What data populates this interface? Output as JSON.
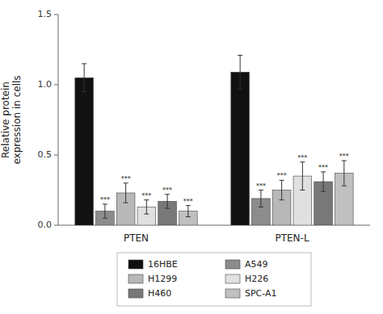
{
  "chart_data": {
    "type": "bar",
    "ylabel": "Relative protein\nexpression in cells",
    "categories": [
      "PTEN",
      "PTEN-L"
    ],
    "series": [
      {
        "name": "16HBE",
        "color": "#111111",
        "values": [
          1.05,
          1.09
        ],
        "errors": [
          0.1,
          0.12
        ],
        "annotations": [
          null,
          null
        ]
      },
      {
        "name": "A549",
        "color": "#8c8c8c",
        "values": [
          0.1,
          0.19
        ],
        "errors": [
          0.05,
          0.06
        ],
        "annotations": [
          "***",
          "***"
        ]
      },
      {
        "name": "H1299",
        "color": "#b8b8b8",
        "values": [
          0.23,
          0.25
        ],
        "errors": [
          0.07,
          0.07
        ],
        "annotations": [
          "***",
          "***"
        ]
      },
      {
        "name": "H226",
        "color": "#e0e0e0",
        "values": [
          0.13,
          0.35
        ],
        "errors": [
          0.05,
          0.1
        ],
        "annotations": [
          "***",
          "***"
        ]
      },
      {
        "name": "H460",
        "color": "#787878",
        "values": [
          0.17,
          0.31
        ],
        "errors": [
          0.05,
          0.07
        ],
        "annotations": [
          "***",
          "***"
        ]
      },
      {
        "name": "SPC-A1",
        "color": "#c0c0c0",
        "values": [
          0.1,
          0.37
        ],
        "errors": [
          0.04,
          0.09
        ],
        "annotations": [
          "***",
          "***"
        ]
      }
    ],
    "ylim": [
      0,
      1.5
    ],
    "yticks": [
      {
        "value": 0,
        "label": "0.0"
      },
      0.5,
      {
        "value": 1,
        "label": "1.0"
      },
      1.5
    ],
    "grid": false,
    "legend": "bottom"
  }
}
